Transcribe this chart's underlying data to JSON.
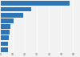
{
  "values": [
    57.3,
    25.0,
    18.5,
    10.5,
    8.2,
    7.1,
    6.8,
    6.3,
    5.9
  ],
  "bar_color": "#2e75b6",
  "background_color": "#f2f2f2",
  "plot_background": "#f2f2f2",
  "grid_color": "#ffffff",
  "bar_height": 0.82,
  "figsize": [
    1.0,
    0.71
  ],
  "dpi": 100,
  "xlim_max": 65
}
